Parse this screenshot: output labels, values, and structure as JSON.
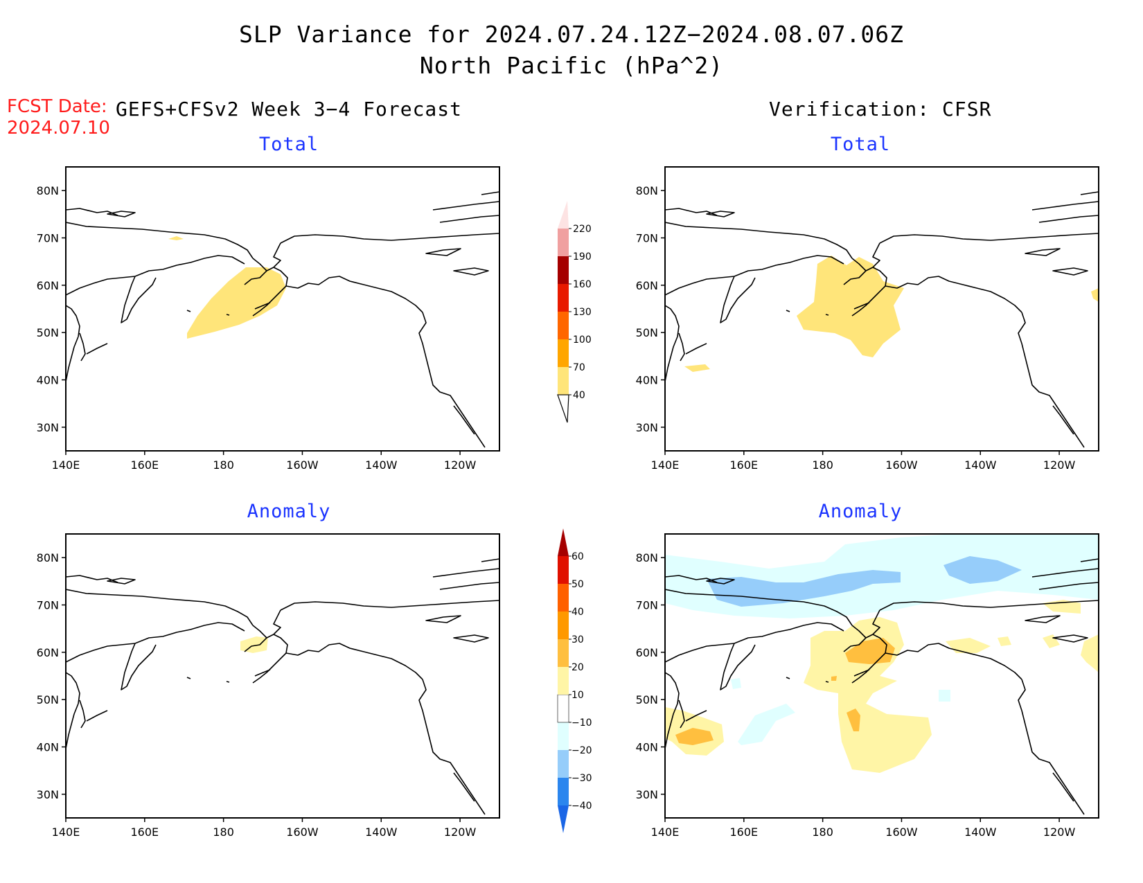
{
  "title": "SLP Variance for 2024.07.24.12Z−2024.08.07.06Z",
  "subtitle": "North Pacific (hPa^2)",
  "fcst_date_label": "FCST Date:",
  "fcst_date_value": "2024.07.10",
  "left_column_title": "GEFS+CFSv2 Week 3−4 Forecast",
  "right_column_title": "Verification: CFSR",
  "panels": {
    "top_left": "Total",
    "top_right": "Total",
    "bottom_left": "Anomaly",
    "bottom_right": "Anomaly"
  },
  "lon_ticks": [
    "140E",
    "160E",
    "180",
    "160W",
    "140W",
    "120W"
  ],
  "lat_ticks": [
    "80N",
    "70N",
    "60N",
    "50N",
    "40N",
    "30N"
  ],
  "map_extent": {
    "lon_min": 140,
    "lon_max": 250,
    "lat_min": 25,
    "lat_max": 85
  },
  "total_colorbar": {
    "labels": [
      "40",
      "70",
      "100",
      "130",
      "160",
      "190",
      "220"
    ],
    "colors": [
      "#ffe57a",
      "#ffa600",
      "#ff6600",
      "#e81a00",
      "#a50000",
      "#f0a0a0",
      "#fde3e3"
    ]
  },
  "anomaly_colorbar": {
    "labels": [
      "−40",
      "−30",
      "−20",
      "−10",
      "10",
      "20",
      "30",
      "40",
      "50",
      "60"
    ],
    "colors": [
      "#1a66e6",
      "#2b86ee",
      "#96cdfa",
      "#e0ffff",
      "#ffffff",
      "#fff5a6",
      "#ffbf3f",
      "#ff9900",
      "#ff6000",
      "#e01000",
      "#a50000"
    ]
  },
  "colors": {
    "title_text": "#000000",
    "fcst_text": "#ff1a1a",
    "panel_title_text": "#1a33ff"
  }
}
